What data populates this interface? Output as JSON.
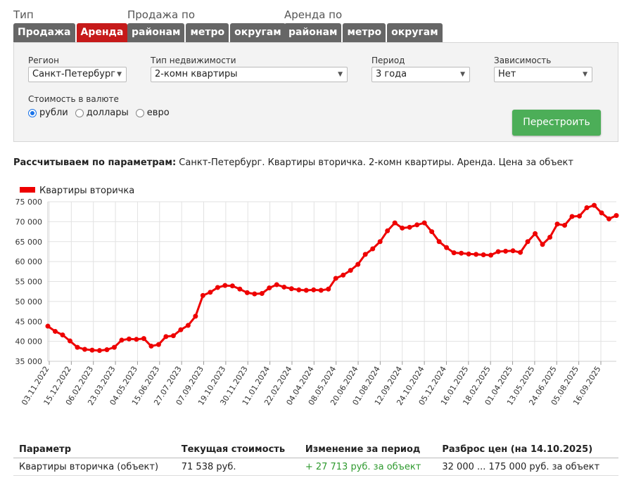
{
  "groups": {
    "type": {
      "label": "Тип",
      "tabs": [
        "Продажа",
        "Аренда"
      ],
      "active": 1
    },
    "sale": {
      "label": "Продажа по",
      "tabs": [
        "районам",
        "метро",
        "округам"
      ]
    },
    "rent": {
      "label": "Аренда по",
      "tabs": [
        "районам",
        "метро",
        "округам"
      ]
    }
  },
  "filters": {
    "region": {
      "label": "Регион",
      "value": "Санкт-Петербург"
    },
    "property_type": {
      "label": "Тип недвижимости",
      "value": "2-комн квартиры"
    },
    "period": {
      "label": "Период",
      "value": "3 года"
    },
    "dependency": {
      "label": "Зависимость",
      "value": "Нет"
    },
    "currency_label": "Стоимость в валюте",
    "currencies": [
      "рубли",
      "доллары",
      "евро"
    ],
    "currency_selected": "рубли",
    "rebuild_label": "Перестроить"
  },
  "params_line": {
    "label": "Рассчитываем по параметрам:",
    "value": "Санкт-Петербург. Квартиры вторичка. 2-комн квартиры. Аренда. Цена за объект"
  },
  "chart_data": {
    "type": "line",
    "legend": "Квартиры вторичка",
    "legend_position": "top-left",
    "series_color": "#ee0000",
    "grid": true,
    "ylim": [
      35000,
      75000
    ],
    "y_ticks": [
      "35 000",
      "40 000",
      "45 000",
      "50 000",
      "55 000",
      "60 000",
      "65 000",
      "70 000",
      "75 000"
    ],
    "x_labels": [
      "03.11.2022",
      "15.12.2022",
      "06.02.2023",
      "23.03.2023",
      "04.05.2023",
      "15.06.2023",
      "27.07.2023",
      "07.09.2023",
      "19.10.2023",
      "30.11.2023",
      "11.01.2024",
      "22.02.2024",
      "04.04.2024",
      "08.05.2024",
      "20.06.2024",
      "01.08.2024",
      "12.09.2024",
      "24.10.2024",
      "05.12.2024",
      "16.01.2025",
      "18.02.2025",
      "01.04.2025",
      "13.05.2025",
      "24.06.2025",
      "05.08.2025",
      "16.09.2025"
    ],
    "values": [
      43800,
      42500,
      41600,
      40100,
      38500,
      38000,
      37800,
      37700,
      37900,
      38500,
      40300,
      40600,
      40500,
      40700,
      38800,
      39200,
      41200,
      41400,
      42900,
      44000,
      46300,
      51500,
      52300,
      53500,
      54000,
      53900,
      53100,
      52200,
      51900,
      52000,
      53400,
      54200,
      53600,
      53200,
      52900,
      52800,
      52900,
      52800,
      53100,
      55800,
      56600,
      57800,
      59300,
      61800,
      63200,
      65000,
      67700,
      69700,
      68400,
      68600,
      69200,
      69700,
      67500,
      65000,
      63500,
      62200,
      62100,
      61900,
      61800,
      61700,
      61600,
      62500,
      62600,
      62700,
      62300,
      65000,
      67000,
      64300,
      66100,
      69400,
      69100,
      71300,
      71400,
      73500,
      74100,
      72200,
      70700,
      71538
    ]
  },
  "stats": {
    "headers": [
      "Параметр",
      "Текущая стоимость",
      "Изменение за период",
      "Разброс цен (на 14.10.2025)"
    ],
    "row": [
      "Квартиры вторичка (объект)",
      "71 538 руб.",
      "+ 27 713 руб. за объект",
      "32 000 ... 175 000 руб. за объект"
    ]
  }
}
